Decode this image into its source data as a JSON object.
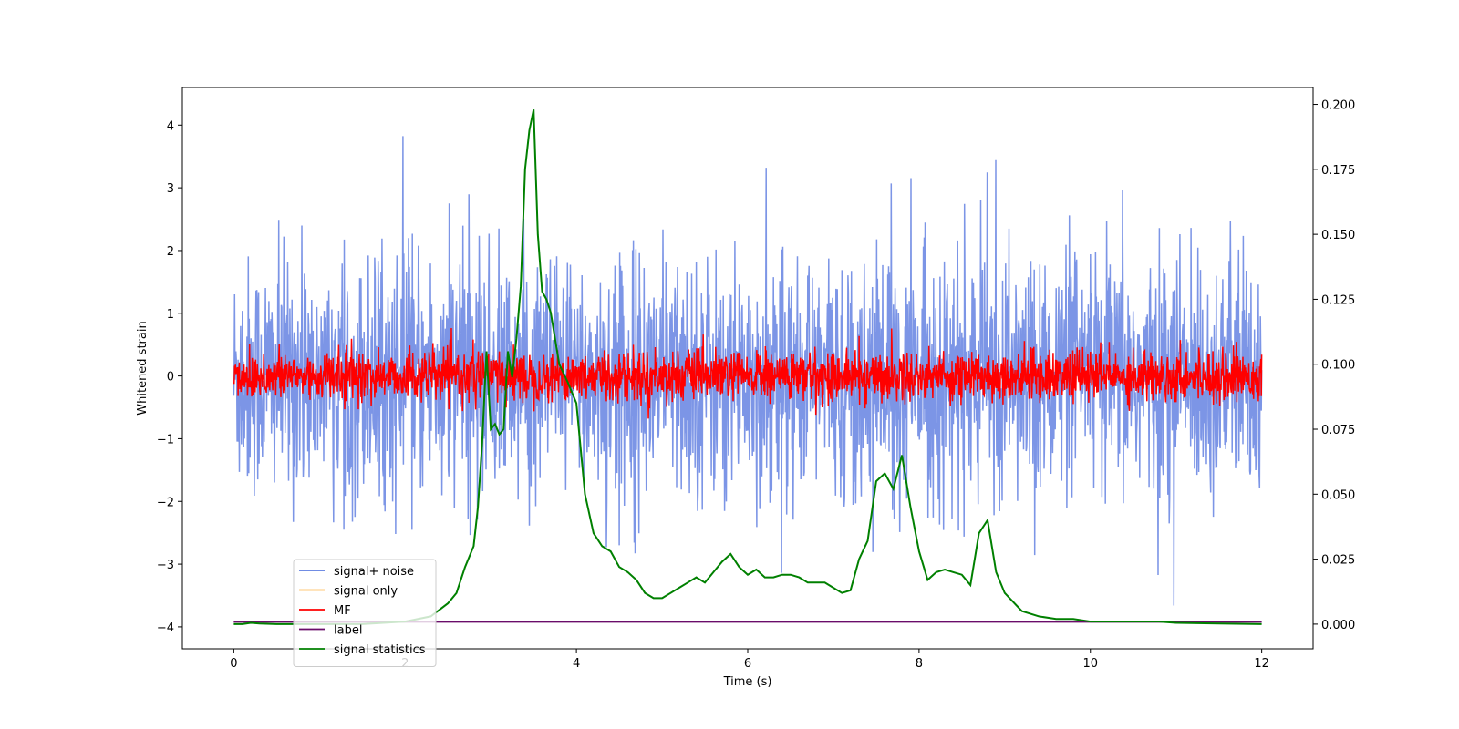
{
  "chart_data": {
    "type": "line",
    "title": "",
    "xlabel": "Time (s)",
    "ylabel": "Whitened strain",
    "y2label": "",
    "xlim": [
      -0.6,
      12.6
    ],
    "ylim": [
      -4.35,
      4.6
    ],
    "y2lim": [
      -0.0095,
      0.2065
    ],
    "xticks": [
      0,
      2,
      4,
      6,
      8,
      10,
      12
    ],
    "yticks": [
      -4,
      -3,
      -2,
      -1,
      0,
      1,
      2,
      3,
      4
    ],
    "y2ticks": [
      "0.000",
      "0.025",
      "0.050",
      "0.075",
      "0.100",
      "0.125",
      "0.150",
      "0.175",
      "0.200"
    ],
    "legend_position": "lower-left",
    "series": [
      {
        "name": "signal+ noise",
        "color": "#5b7be0",
        "axis": "left",
        "kind": "noise",
        "sigma": 0.95,
        "mean": -0.02,
        "t_start": 0,
        "t_end": 12
      },
      {
        "name": "signal only",
        "color": "#ffb84d",
        "axis": "left",
        "kind": "flat",
        "value": 0
      },
      {
        "name": "MF",
        "color": "#ff0000",
        "axis": "left",
        "kind": "noise",
        "sigma": 0.2,
        "mean": 0.0,
        "t_start": 0,
        "t_end": 12
      },
      {
        "name": "label",
        "color": "#6a0d6a",
        "axis": "left",
        "kind": "flat",
        "value": -3.92,
        "t_start": 0,
        "t_end": 12
      },
      {
        "name": "signal statistics",
        "color": "#008000",
        "axis": "right",
        "kind": "line",
        "x": [
          0,
          0.1,
          0.2,
          0.3,
          0.5,
          1.0,
          1.5,
          2.0,
          2.3,
          2.5,
          2.6,
          2.7,
          2.8,
          2.85,
          2.9,
          2.95,
          3.0,
          3.05,
          3.1,
          3.15,
          3.2,
          3.25,
          3.3,
          3.35,
          3.4,
          3.45,
          3.5,
          3.55,
          3.6,
          3.65,
          3.7,
          3.8,
          3.9,
          4.0,
          4.1,
          4.2,
          4.3,
          4.4,
          4.5,
          4.6,
          4.7,
          4.8,
          4.9,
          5.0,
          5.1,
          5.2,
          5.3,
          5.4,
          5.5,
          5.6,
          5.7,
          5.8,
          5.9,
          6.0,
          6.1,
          6.2,
          6.3,
          6.4,
          6.5,
          6.6,
          6.7,
          6.8,
          6.9,
          7.0,
          7.1,
          7.2,
          7.3,
          7.4,
          7.5,
          7.6,
          7.7,
          7.8,
          7.9,
          8.0,
          8.1,
          8.2,
          8.3,
          8.4,
          8.5,
          8.6,
          8.7,
          8.8,
          8.9,
          9.0,
          9.2,
          9.4,
          9.6,
          9.8,
          10.0,
          10.2,
          10.5,
          10.8,
          11.0,
          11.5,
          12.0
        ],
        "y": [
          0.0,
          0.0,
          0.0005,
          0.0002,
          0.0,
          0.0,
          0.0,
          0.001,
          0.003,
          0.008,
          0.012,
          0.022,
          0.03,
          0.045,
          0.07,
          0.105,
          0.075,
          0.077,
          0.073,
          0.075,
          0.105,
          0.095,
          0.11,
          0.13,
          0.175,
          0.19,
          0.198,
          0.15,
          0.128,
          0.125,
          0.12,
          0.1,
          0.093,
          0.085,
          0.05,
          0.035,
          0.03,
          0.028,
          0.022,
          0.02,
          0.017,
          0.012,
          0.01,
          0.01,
          0.012,
          0.014,
          0.016,
          0.018,
          0.016,
          0.02,
          0.024,
          0.027,
          0.022,
          0.019,
          0.021,
          0.018,
          0.018,
          0.019,
          0.019,
          0.018,
          0.016,
          0.016,
          0.016,
          0.014,
          0.012,
          0.013,
          0.025,
          0.032,
          0.055,
          0.058,
          0.052,
          0.065,
          0.045,
          0.028,
          0.017,
          0.02,
          0.021,
          0.02,
          0.019,
          0.015,
          0.035,
          0.04,
          0.02,
          0.012,
          0.005,
          0.003,
          0.002,
          0.002,
          0.001,
          0.001,
          0.001,
          0.001,
          0.0005,
          0.0002,
          0.0
        ]
      }
    ]
  }
}
